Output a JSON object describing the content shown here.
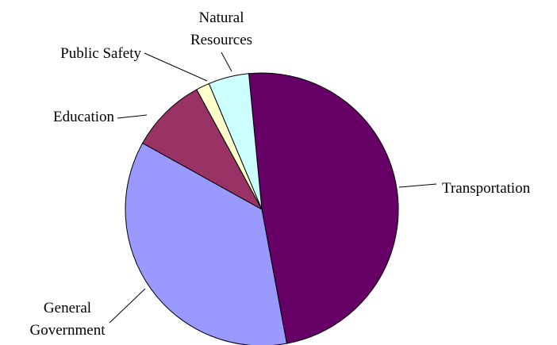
{
  "chart_data": {
    "type": "pie",
    "title": "",
    "start_angle_deg": -5.5,
    "direction": "clockwise",
    "slices": [
      {
        "key": "transportation",
        "label_lines": [
          "Transportation"
        ],
        "value": 48.6,
        "color": "#660066"
      },
      {
        "key": "general-government",
        "label_lines": [
          "General",
          "Government"
        ],
        "value": 36.0,
        "color": "#9999FF"
      },
      {
        "key": "education",
        "label_lines": [
          "Education"
        ],
        "value": 9.0,
        "color": "#993366"
      },
      {
        "key": "public-safety",
        "label_lines": [
          "Public Safety"
        ],
        "value": 1.6,
        "color": "#FFFFCC"
      },
      {
        "key": "natural-resources",
        "label_lines": [
          "Natural",
          "Resources"
        ],
        "value": 4.8,
        "color": "#CCFFFF"
      }
    ]
  }
}
